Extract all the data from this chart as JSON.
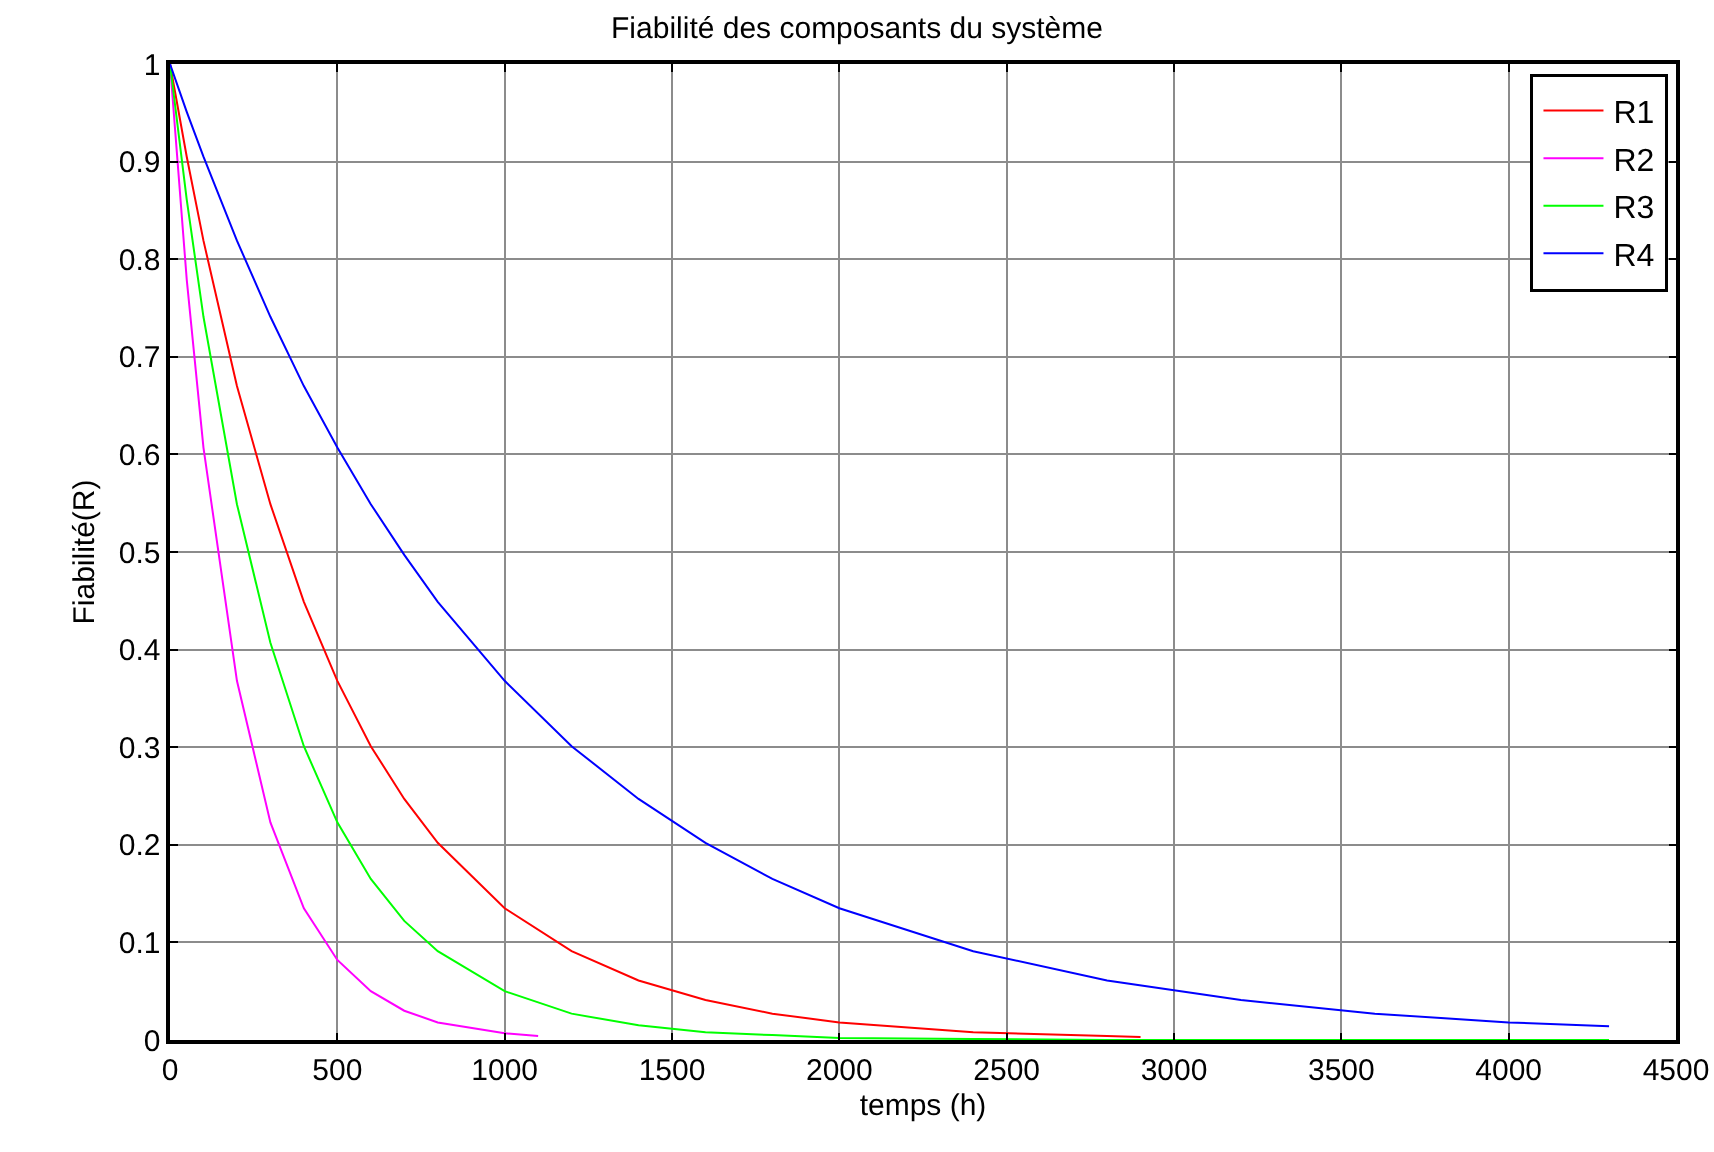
{
  "chart_data": {
    "type": "line",
    "title": "Fiabilité des composants du système",
    "xlabel": "temps (h)",
    "ylabel": "Fiabilité(R)",
    "x": [
      0,
      50,
      100,
      200,
      300,
      400,
      500,
      600,
      700,
      800,
      1000,
      1200,
      1400,
      1600,
      1800,
      2000,
      2400,
      2800,
      3200,
      3600,
      4000,
      4300
    ],
    "series": [
      {
        "name": "R1",
        "color": "#ff0000",
        "x": [
          0,
          50,
          100,
          200,
          300,
          400,
          500,
          600,
          700,
          800,
          1000,
          1200,
          1400,
          1600,
          1800,
          2000,
          2400,
          2800,
          2900
        ],
        "values": [
          1,
          0.905,
          0.819,
          0.67,
          0.549,
          0.449,
          0.368,
          0.301,
          0.247,
          0.202,
          0.135,
          0.091,
          0.061,
          0.041,
          0.027,
          0.018,
          0.008,
          0.004,
          0.003
        ]
      },
      {
        "name": "R2",
        "color": "#ff00ff",
        "x": [
          0,
          50,
          100,
          200,
          300,
          400,
          500,
          600,
          700,
          800,
          1000,
          1100
        ],
        "values": [
          1,
          0.779,
          0.607,
          0.368,
          0.223,
          0.135,
          0.082,
          0.05,
          0.03,
          0.018,
          0.007,
          0.004
        ]
      },
      {
        "name": "R3",
        "color": "#00ff00",
        "values": [
          1,
          0.861,
          0.741,
          0.549,
          0.407,
          0.301,
          0.223,
          0.165,
          0.122,
          0.091,
          0.05,
          0.027,
          0.015,
          0.008,
          0.005,
          0.002,
          0.001,
          0,
          0,
          0,
          0,
          0
        ]
      },
      {
        "name": "R4",
        "color": "#0000ff",
        "values": [
          1,
          0.951,
          0.905,
          0.819,
          0.741,
          0.67,
          0.607,
          0.549,
          0.497,
          0.449,
          0.368,
          0.301,
          0.247,
          0.202,
          0.165,
          0.135,
          0.091,
          0.061,
          0.041,
          0.027,
          0.018,
          0.014
        ]
      }
    ],
    "xlim": [
      0,
      4500
    ],
    "xticks": [
      0,
      500,
      1000,
      1500,
      2000,
      2500,
      3000,
      3500,
      4000,
      4500
    ],
    "ylim": [
      0,
      1
    ],
    "yticks": [
      0,
      0.1,
      0.2,
      0.3,
      0.4,
      0.5,
      0.6,
      0.7,
      0.8,
      0.9,
      1
    ],
    "grid": true,
    "legend": "top right",
    "marker": "none",
    "line_style": "solid"
  }
}
